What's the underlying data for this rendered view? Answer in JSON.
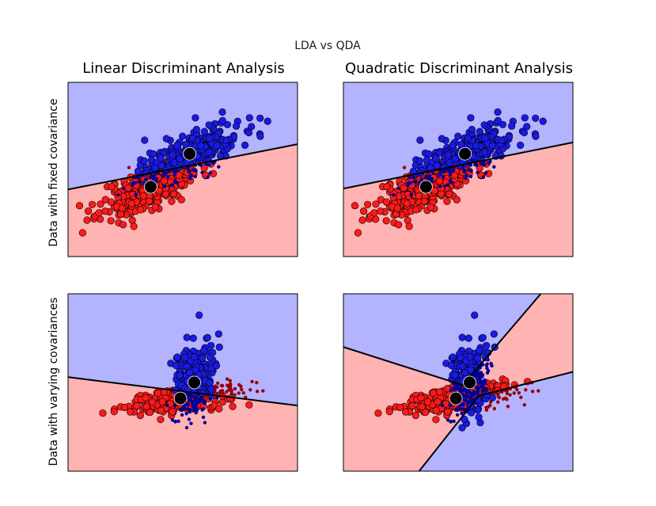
{
  "figure": {
    "title": "LDA vs QDA",
    "column_titles": [
      "Linear Discriminant Analysis",
      "Quadratic Discriminant Analysis"
    ],
    "row_labels": [
      "Data with fixed covariance",
      "Data with varying covariances"
    ]
  },
  "colors": {
    "class0_point": "#ff1a1a",
    "class1_point": "#1a1ae6",
    "class0_region": "#ffb3b3",
    "class1_region": "#b3b3ff",
    "misclassified_red": "#990000",
    "misclassified_blue": "#000099",
    "boundary": "#000000",
    "mean_marker": "#000000"
  },
  "chart_data": [
    {
      "type": "scatter",
      "row": 0,
      "col": 0,
      "title": "Linear Discriminant Analysis",
      "ylabel": "Data with fixed covariance",
      "xlim": [
        -4,
        6
      ],
      "ylim": [
        -4,
        6
      ],
      "xticks": [],
      "yticks": [],
      "series": [
        {
          "cloud": {
            "cx": -0.4,
            "cy": 0.0,
            "sx": 2.0,
            "sy": 1.55,
            "rho": 0.68,
            "n": 300
          }
        },
        {
          "cloud": {
            "cx": 1.3,
            "cy": 1.9,
            "sx": 2.0,
            "sy": 1.55,
            "rho": 0.68,
            "n": 300
          }
        }
      ],
      "means": [
        [
          -0.4,
          0.0
        ],
        [
          1.3,
          1.9
        ]
      ],
      "boundary": {
        "kind": "linear",
        "p1": [
          -4,
          -0.15
        ],
        "p2": [
          6,
          2.45
        ]
      },
      "seed": 11
    },
    {
      "type": "scatter",
      "row": 0,
      "col": 1,
      "title": "Quadratic Discriminant Analysis",
      "xlim": [
        -4,
        6
      ],
      "ylim": [
        -4,
        6
      ],
      "xticks": [],
      "yticks": [],
      "series": [
        {
          "cloud": {
            "cx": -0.4,
            "cy": 0.0,
            "sx": 2.0,
            "sy": 1.55,
            "rho": 0.68,
            "n": 300
          }
        },
        {
          "cloud": {
            "cx": 1.3,
            "cy": 1.9,
            "sx": 2.0,
            "sy": 1.55,
            "rho": 0.68,
            "n": 300
          }
        }
      ],
      "means": [
        [
          -0.4,
          0.0
        ],
        [
          1.3,
          1.9
        ]
      ],
      "boundary": {
        "kind": "linear",
        "p1": [
          -4,
          -0.1
        ],
        "p2": [
          6,
          2.55
        ]
      },
      "seed": 11
    },
    {
      "type": "scatter",
      "row": 1,
      "col": 0,
      "xlim": [
        -4,
        6
      ],
      "ylim": [
        -4,
        6
      ],
      "xticks": [],
      "yticks": [],
      "series": [
        {
          "cloud": {
            "cx": 0.9,
            "cy": 0.1,
            "sx": 2.3,
            "sy": 0.75,
            "rho": 0.55,
            "n": 300
          }
        },
        {
          "cloud": {
            "cx": 1.5,
            "cy": 1.0,
            "sx": 0.8,
            "sy": 2.0,
            "rho": 0.15,
            "n": 300
          }
        }
      ],
      "means": [
        [
          0.9,
          0.1
        ],
        [
          1.5,
          1.0
        ]
      ],
      "boundary": {
        "kind": "linear",
        "p1": [
          -4,
          1.3
        ],
        "p2": [
          6,
          -0.3
        ]
      },
      "seed": 29
    },
    {
      "type": "scatter",
      "row": 1,
      "col": 1,
      "xlim": [
        -4,
        6
      ],
      "ylim": [
        -4,
        6
      ],
      "xticks": [],
      "yticks": [],
      "series": [
        {
          "cloud": {
            "cx": 0.9,
            "cy": 0.1,
            "sx": 2.3,
            "sy": 0.75,
            "rho": 0.55,
            "n": 300
          }
        },
        {
          "cloud": {
            "cx": 1.5,
            "cy": 1.0,
            "sx": 0.8,
            "sy": 2.0,
            "rho": 0.15,
            "n": 300
          }
        }
      ],
      "means": [
        [
          0.9,
          0.1
        ],
        [
          1.5,
          1.0
        ]
      ],
      "boundary": {
        "kind": "hyperbola",
        "branch_a": [
          [
            -4,
            3.0
          ],
          [
            1.2,
            0.85
          ],
          [
            4.6,
            6
          ]
        ],
        "branch_b": [
          [
            -0.7,
            -4
          ],
          [
            1.9,
            0.25
          ],
          [
            6,
            1.6
          ]
        ]
      },
      "seed": 29
    }
  ]
}
